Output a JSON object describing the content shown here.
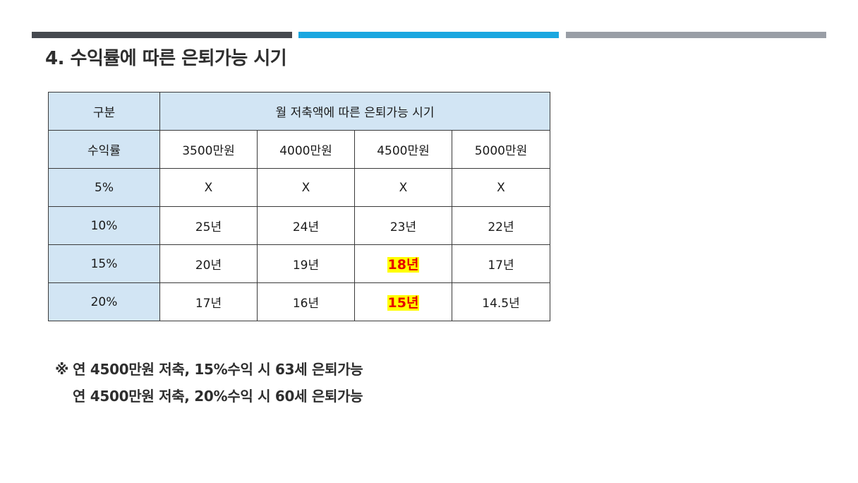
{
  "colors": {
    "bar_1": "#45494f",
    "bar_2": "#1aa7e0",
    "bar_3": "#999ea6",
    "header_fill": "#d2e5f4",
    "highlight_fill": "#ffff00",
    "highlight_text": "#e60000"
  },
  "title": "4. 수익률에 따른 은퇴가능 시기",
  "table": {
    "corner_label": "구분",
    "group_header": "월 저축액에 따른 은퇴가능 시기",
    "rate_header": "수익률",
    "columns": [
      "3500만원",
      "4000만원",
      "4500만원",
      "5000만원"
    ],
    "rows": [
      {
        "rate": "5%",
        "values": [
          "X",
          "X",
          "X",
          "X"
        ]
      },
      {
        "rate": "10%",
        "values": [
          "25년",
          "24년",
          "23년",
          "22년"
        ]
      },
      {
        "rate": "15%",
        "values": [
          "20년",
          "19년",
          "18년",
          "17년"
        ]
      },
      {
        "rate": "20%",
        "values": [
          "17년",
          "16년",
          "15년",
          "14.5년"
        ]
      }
    ],
    "highlighted_cells": [
      "rows.2.values.2",
      "rows.3.values.2"
    ]
  },
  "notes": {
    "mark": "※",
    "line_1": "연 4500만원 저축, 15%수익 시 63세 은퇴가능",
    "line_2": "연 4500만원 저축, 20%수익 시 60세 은퇴가능"
  }
}
